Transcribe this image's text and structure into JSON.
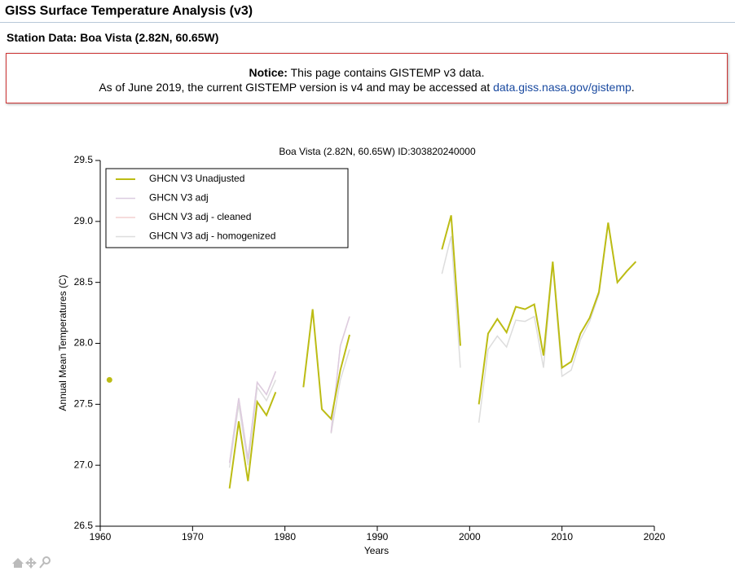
{
  "header": {
    "title": "GISS Surface Temperature Analysis (v3)",
    "subtitle": "Station Data: Boa Vista (2.82N, 60.65W)"
  },
  "notice": {
    "label": "Notice:",
    "line1": "This page contains GISTEMP v3 data.",
    "line2": "As of June 2019, the current GISTEMP version is v4 and may be accessed at",
    "link": "data.giss.nasa.gov/gistemp",
    "end": "."
  },
  "chart_data": {
    "type": "line",
    "title": "Boa Vista (2.82N, 60.65W) ID:303820240000",
    "x_label": "Years",
    "y_label": "Annual Mean Temperatures (C)",
    "xlim": [
      1960,
      2020
    ],
    "xticks": [
      1960,
      1970,
      1980,
      1990,
      2000,
      2010,
      2020
    ],
    "ylim": [
      26.5,
      29.5
    ],
    "yticks": [
      26.5,
      {
        "value": 27,
        "label": "27.0"
      },
      27.5,
      {
        "value": 28,
        "label": "28.0"
      },
      28.5,
      {
        "value": 29,
        "label": "29.0"
      },
      29.5
    ],
    "legend": "upper left",
    "x": [
      1961,
      1962,
      1963,
      1964,
      1965,
      1966,
      1967,
      1968,
      1969,
      1970,
      1971,
      1972,
      1973,
      1974,
      1975,
      1976,
      1977,
      1978,
      1979,
      1980,
      1981,
      1982,
      1983,
      1984,
      1985,
      1986,
      1987,
      1988,
      1989,
      1990,
      1991,
      1992,
      1993,
      1994,
      1995,
      1996,
      1997,
      1998,
      1999,
      2000,
      2001,
      2002,
      2003,
      2004,
      2005,
      2006,
      2007,
      2008,
      2009,
      2010,
      2011,
      2012,
      2013,
      2014,
      2015,
      2016,
      2017,
      2018
    ],
    "series": [
      {
        "name": "GHCN V3 Unadjusted",
        "color": "#bcbc14",
        "width": 2,
        "values": [
          27.7,
          null,
          null,
          null,
          null,
          null,
          null,
          null,
          null,
          null,
          null,
          null,
          null,
          26.81,
          27.36,
          26.87,
          27.52,
          27.41,
          27.6,
          null,
          null,
          27.64,
          28.28,
          27.46,
          27.38,
          27.78,
          28.07,
          null,
          null,
          null,
          null,
          null,
          null,
          null,
          null,
          null,
          28.77,
          29.05,
          27.98,
          null,
          27.5,
          28.08,
          28.2,
          28.09,
          28.3,
          28.28,
          28.32,
          27.9,
          28.67,
          27.8,
          27.85,
          28.08,
          28.21,
          28.42,
          28.99,
          28.5,
          28.59,
          28.67
        ]
      },
      {
        "name": "GHCN V3 adj",
        "color": "#dccce0",
        "width": 1.5,
        "values": [
          null,
          null,
          null,
          null,
          null,
          null,
          null,
          null,
          null,
          null,
          null,
          null,
          null,
          27.02,
          27.55,
          27.05,
          27.68,
          27.58,
          27.77,
          null,
          null,
          null,
          null,
          null,
          27.27,
          27.98,
          28.22,
          null,
          null,
          null,
          null,
          null,
          null,
          null,
          null,
          null,
          null,
          null,
          null,
          null,
          null,
          null,
          null,
          null,
          null,
          null,
          null,
          null,
          null,
          null,
          null,
          null,
          null,
          null,
          null,
          null,
          null,
          null
        ]
      },
      {
        "name": "GHCN V3 adj - cleaned",
        "color": "#f4d0d0",
        "width": 1.5,
        "values": [
          null,
          null,
          null,
          null,
          null,
          null,
          null,
          null,
          null,
          null,
          null,
          null,
          null,
          27.02,
          27.55,
          27.05,
          27.68,
          27.58,
          27.77,
          null,
          null,
          null,
          null,
          null,
          27.27,
          27.98,
          28.22,
          null,
          null,
          null,
          null,
          null,
          null,
          null,
          null,
          null,
          null,
          null,
          null,
          null,
          null,
          null,
          null,
          null,
          null,
          null,
          null,
          null,
          null,
          null,
          null,
          null,
          null,
          null,
          null,
          null,
          null,
          null
        ]
      },
      {
        "name": "GHCN V3 adj - homogenized",
        "color": "#dddddd",
        "width": 1.5,
        "values": [
          null,
          null,
          null,
          null,
          null,
          null,
          null,
          null,
          null,
          null,
          null,
          null,
          null,
          26.98,
          27.5,
          27.0,
          27.64,
          27.53,
          27.7,
          null,
          null,
          null,
          null,
          null,
          27.26,
          27.7,
          27.95,
          null,
          null,
          null,
          null,
          null,
          null,
          null,
          null,
          null,
          28.57,
          28.88,
          27.8,
          null,
          27.35,
          27.95,
          28.06,
          27.97,
          28.19,
          28.18,
          28.22,
          27.8,
          28.65,
          27.73,
          27.78,
          28.03,
          28.18,
          28.4,
          28.98,
          28.5,
          28.59,
          28.67
        ]
      }
    ]
  }
}
